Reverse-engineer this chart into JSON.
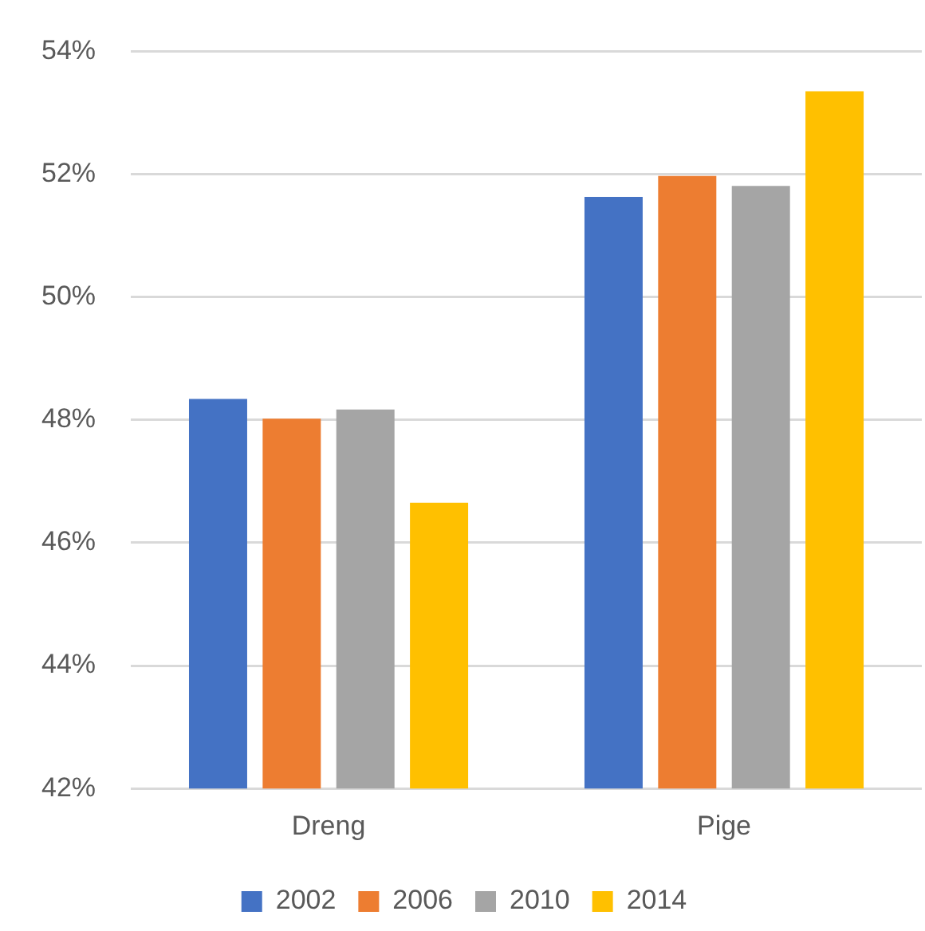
{
  "chart_data": {
    "type": "bar",
    "categories": [
      "Dreng",
      "Pige"
    ],
    "series": [
      {
        "name": "2002",
        "color": "#4472c4",
        "values": [
          48.34,
          51.63
        ]
      },
      {
        "name": "2006",
        "color": "#ed7d31",
        "values": [
          48.02,
          51.97
        ]
      },
      {
        "name": "2010",
        "color": "#a5a5a5",
        "values": [
          48.17,
          51.81
        ]
      },
      {
        "name": "2014",
        "color": "#ffc000",
        "values": [
          46.65,
          53.35
        ]
      }
    ],
    "ylim": [
      42,
      54
    ],
    "yticks": [
      {
        "value": 42,
        "label": "42%"
      },
      {
        "value": 44,
        "label": "44%"
      },
      {
        "value": 46,
        "label": "46%"
      },
      {
        "value": 48,
        "label": "48%"
      },
      {
        "value": 50,
        "label": "50%"
      },
      {
        "value": 52,
        "label": "52%"
      },
      {
        "value": 54,
        "label": "54%"
      }
    ],
    "grid": "y",
    "legend": "bottom"
  }
}
